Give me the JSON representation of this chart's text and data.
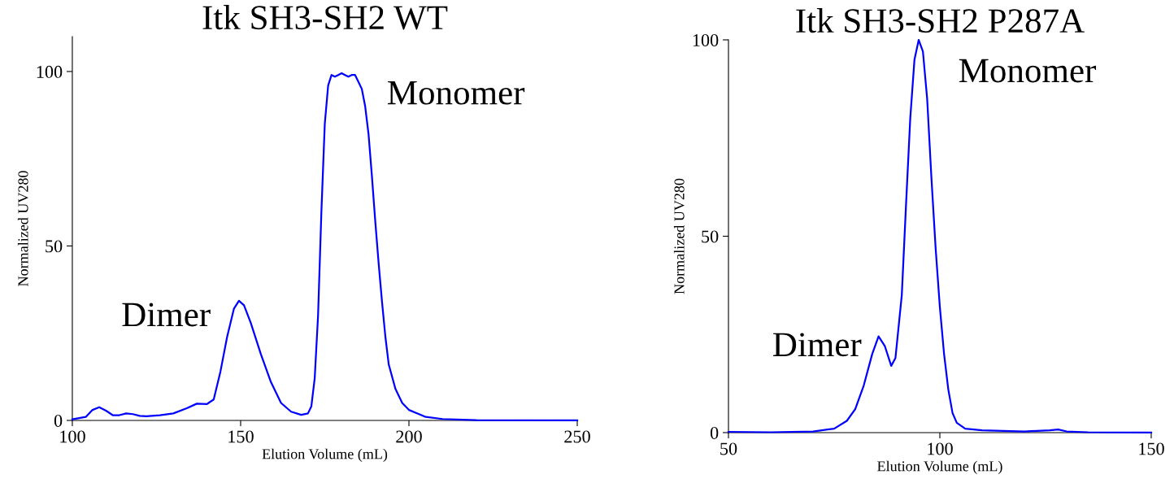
{
  "chart_data": [
    {
      "type": "line",
      "title": "Itk SH3-SH2 WT",
      "xlabel": "Elution Volume (mL)",
      "ylabel": "Normalized UV280",
      "xlim": [
        100,
        250
      ],
      "xticks": [
        100,
        150,
        200,
        250
      ],
      "ylim": [
        0,
        110
      ],
      "yticks": [
        0,
        50,
        100
      ],
      "grid": false,
      "legend": false,
      "annotations": [
        {
          "text": "Dimer",
          "x": 149.5,
          "y": 34.3
        },
        {
          "text": "Monomer",
          "x": 180,
          "y": 99.5
        }
      ],
      "series": [
        {
          "color": "#0000ff",
          "x": [
            100,
            104,
            106,
            108,
            110,
            112,
            114,
            116,
            118,
            120,
            122,
            126,
            130,
            134,
            137,
            140,
            142,
            144,
            146,
            148,
            149.5,
            151,
            153,
            156,
            159,
            162,
            165,
            168,
            170,
            171,
            172,
            173,
            174,
            175,
            176,
            177,
            178,
            179,
            180,
            181,
            182,
            183,
            184,
            185,
            186,
            187,
            188,
            189,
            190,
            191,
            192,
            193,
            194,
            196,
            198,
            200,
            205,
            210,
            220,
            250
          ],
          "values": [
            0.3,
            1,
            3,
            3.8,
            2.8,
            1.5,
            1.5,
            2,
            1.8,
            1.3,
            1.2,
            1.5,
            2,
            3.5,
            4.8,
            4.7,
            6,
            14,
            24,
            32,
            34.3,
            33,
            28,
            19,
            11,
            5,
            2.5,
            1.6,
            2,
            4,
            12,
            30,
            60,
            85,
            96,
            99,
            98.5,
            99,
            99.5,
            99,
            98.5,
            99,
            99,
            97,
            95,
            90,
            82,
            70,
            57,
            45,
            34,
            24,
            16,
            9,
            5,
            3,
            1,
            0.4,
            0.1,
            0
          ]
        }
      ]
    },
    {
      "type": "line",
      "title": "Itk SH3-SH2 P287A",
      "xlabel": "Elution Volume (mL)",
      "ylabel": "Normalized UV280",
      "xlim": [
        50,
        150
      ],
      "xticks": [
        50,
        100,
        150
      ],
      "ylim": [
        0,
        100
      ],
      "yticks": [
        0,
        50,
        100
      ],
      "grid": false,
      "legend": false,
      "annotations": [
        {
          "text": "Dimer",
          "x": 85.5,
          "y": 24.5
        },
        {
          "text": "Monomer",
          "x": 95,
          "y": 100
        }
      ],
      "series": [
        {
          "color": "#0000ff",
          "x": [
            50,
            60,
            70,
            75,
            78,
            80,
            82,
            84,
            85.5,
            87,
            88.5,
            89.5,
            91,
            92,
            93,
            94,
            95,
            96,
            97,
            98,
            99,
            100,
            101,
            102,
            103,
            104,
            106,
            110,
            120,
            126,
            128,
            130,
            135,
            150
          ],
          "values": [
            0.2,
            0.1,
            0.3,
            1,
            3,
            6,
            12,
            20,
            24.5,
            22,
            17,
            19,
            35,
            58,
            80,
            95,
            100,
            97,
            85,
            65,
            47,
            32,
            20,
            11,
            5,
            2.5,
            1,
            0.6,
            0.3,
            0.6,
            0.8,
            0.3,
            0.1,
            0
          ]
        }
      ]
    }
  ]
}
